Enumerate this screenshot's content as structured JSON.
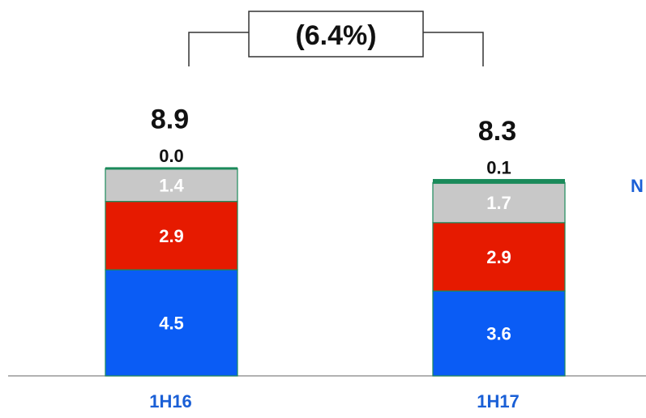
{
  "chart_data": {
    "type": "bar",
    "stacked": true,
    "categories": [
      "1H16",
      "1H17"
    ],
    "series": [
      {
        "values": [
          4.5,
          3.6
        ],
        "color": "#0a5cf5",
        "label_color": "#ffffff"
      },
      {
        "values": [
          2.9,
          2.9
        ],
        "color": "#e61a00",
        "label_color": "#ffffff"
      },
      {
        "values": [
          1.4,
          1.7
        ],
        "color": "#c8c8c8",
        "label_color": "#ffffff"
      },
      {
        "values": [
          0.0,
          0.1
        ],
        "color": "#1a8a5a",
        "label_color": "#111111"
      }
    ],
    "totals": [
      "8.9",
      "8.3"
    ],
    "value_labels": [
      [
        "4.5",
        "2.9",
        "1.4",
        "0.0"
      ],
      [
        "3.6",
        "2.9",
        "1.7",
        "0.1"
      ]
    ],
    "change_label": "(6.4%)",
    "legend_fragment": "N",
    "category_label_color": "#1a5fd6",
    "legend_fragment_color": "#1a5fd6",
    "axis_color": "#999999",
    "grid": false
  }
}
